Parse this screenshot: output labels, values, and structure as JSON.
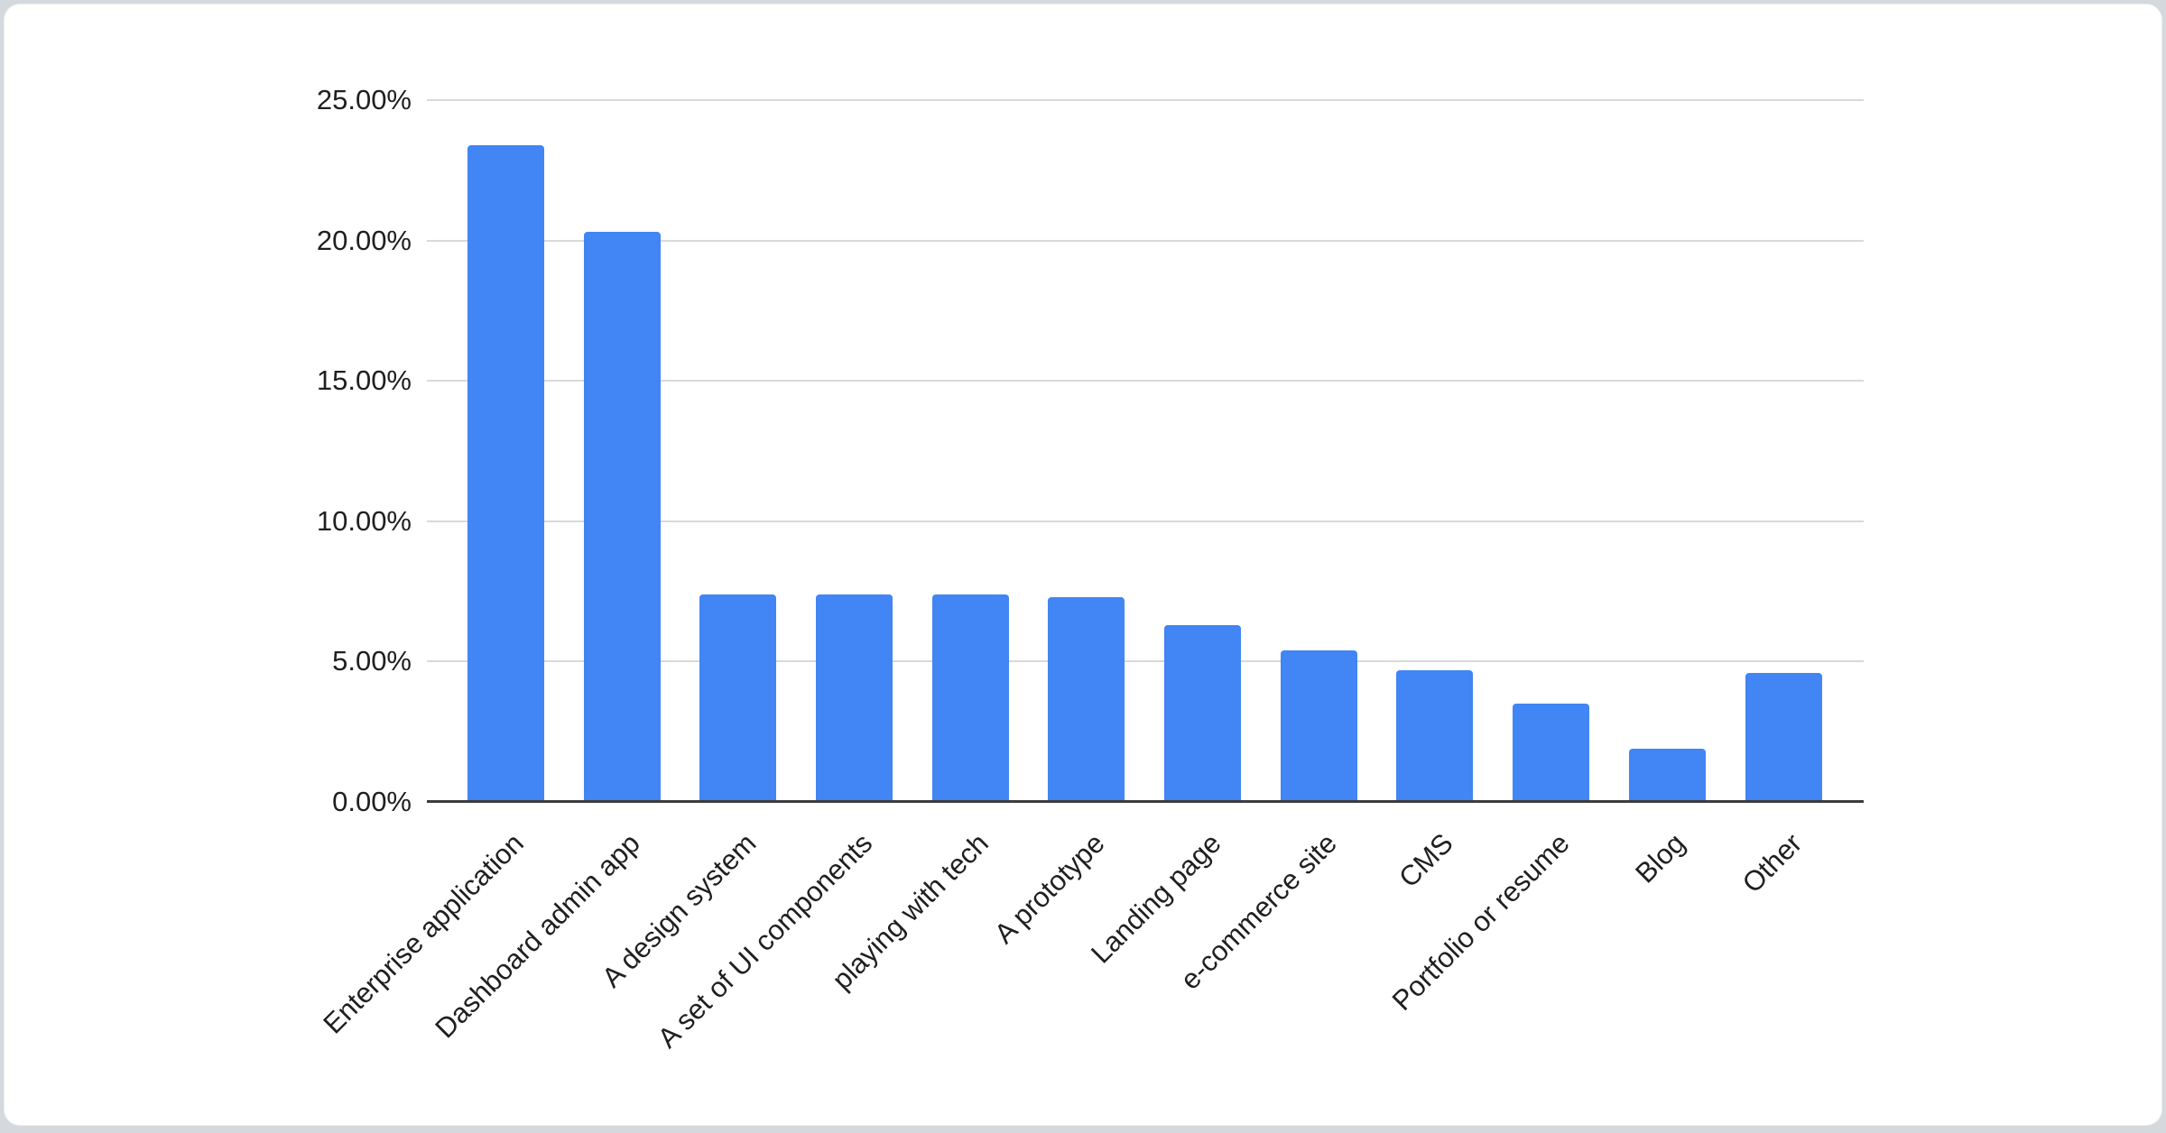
{
  "window": {
    "background_color": "#d5d8dc",
    "card_color": "#ffffff"
  },
  "chart_data": {
    "type": "bar",
    "title": "",
    "categories": [
      "Enterprise application",
      "Dashboard admin app",
      "A design system",
      "A set of UI components",
      "playing with tech",
      "A prototype",
      "Landing page",
      "e-commerce site",
      "CMS",
      "Portfolio or resume",
      "Blog",
      "Other"
    ],
    "values": [
      23.4,
      20.3,
      7.4,
      7.4,
      7.4,
      7.3,
      6.3,
      5.4,
      4.7,
      3.5,
      1.9,
      4.6
    ],
    "value_unit": "percent",
    "xlabel": "",
    "ylabel": "",
    "ylim": [
      0,
      25
    ],
    "y_ticks": [
      {
        "value": 0,
        "label": "0.00%"
      },
      {
        "value": 5,
        "label": "5.00%"
      },
      {
        "value": 10,
        "label": "10.00%"
      },
      {
        "value": 15,
        "label": "15.00%"
      },
      {
        "value": 20,
        "label": "20.00%"
      },
      {
        "value": 25,
        "label": "25.00%"
      }
    ],
    "grid": true,
    "legend": "none",
    "x_label_rotation_deg": -45,
    "colors": {
      "bar": "#4285f4",
      "gridline": "#d9d9d9",
      "axis_line": "#3c3c3c",
      "label": "#1f1f1f"
    }
  }
}
